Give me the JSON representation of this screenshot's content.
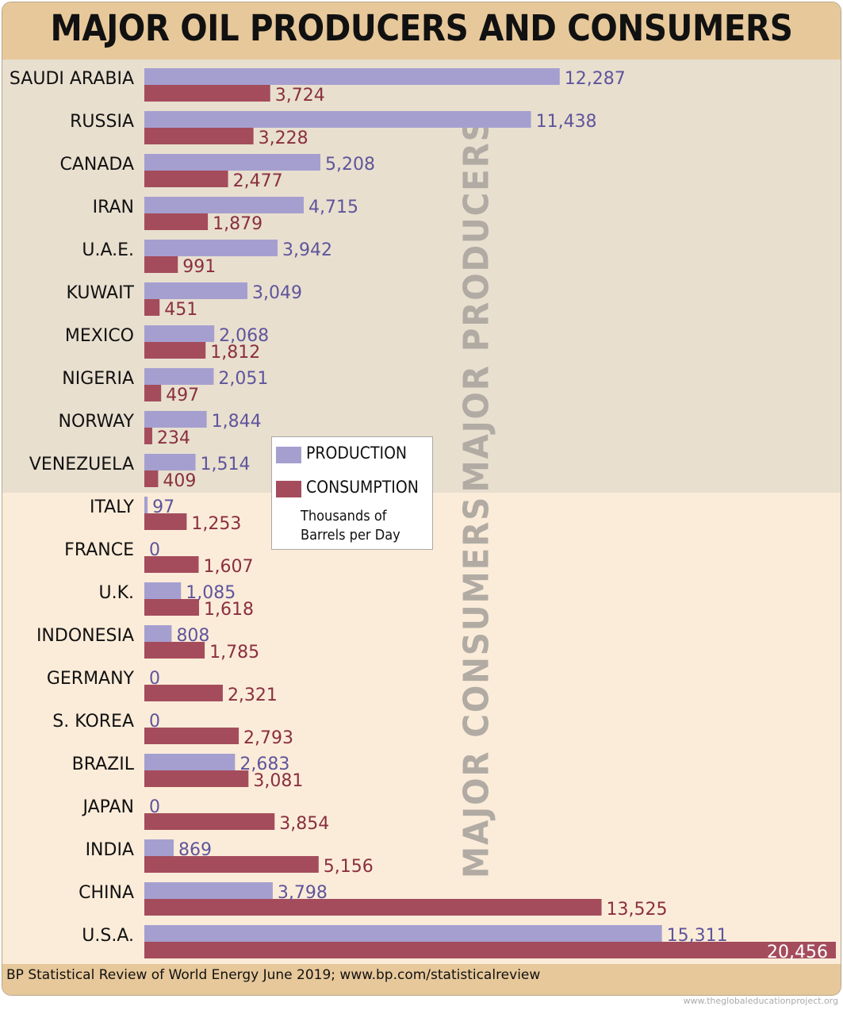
{
  "title": "MAJOR OIL PRODUCERS AND CONSUMERS",
  "section_labels": {
    "producers": "MAJOR PRODUCERS",
    "consumers": "MAJOR CONSUMERS"
  },
  "legend": {
    "production": "PRODUCTION",
    "consumption": "CONSUMPTION",
    "unit_line1": "Thousands of",
    "unit_line2": "Barrels per Day"
  },
  "source": "BP Statistical Review of World Energy June 2019; www.bp.com/statisticalreview",
  "credit": "www.theglobaleducationproject.org",
  "colors": {
    "production": "#a59fd0",
    "consumption": "#a44c5c",
    "production_label": "#5e559c",
    "consumption_label": "#8a2f3f",
    "title_band": "#e7c89a",
    "producers_band": "#e8dfcf",
    "consumers_band": "#fbecd9"
  },
  "chart_data": {
    "type": "bar",
    "orientation": "horizontal",
    "unit": "Thousands of Barrels per Day",
    "categories": [
      "SAUDI ARABIA",
      "RUSSIA",
      "CANADA",
      "IRAN",
      "U.A.E.",
      "KUWAIT",
      "MEXICO",
      "NIGERIA",
      "NORWAY",
      "VENEZUELA",
      "ITALY",
      "FRANCE",
      "U.K.",
      "INDONESIA",
      "GERMANY",
      "S. KOREA",
      "BRAZIL",
      "JAPAN",
      "INDIA",
      "CHINA",
      "U.S.A."
    ],
    "groups": [
      {
        "name": "MAJOR PRODUCERS",
        "categories": [
          "SAUDI ARABIA",
          "RUSSIA",
          "CANADA",
          "IRAN",
          "U.A.E.",
          "KUWAIT",
          "MEXICO",
          "NIGERIA",
          "NORWAY",
          "VENEZUELA"
        ]
      },
      {
        "name": "MAJOR CONSUMERS",
        "categories": [
          "ITALY",
          "FRANCE",
          "U.K.",
          "INDONESIA",
          "GERMANY",
          "S. KOREA",
          "BRAZIL",
          "JAPAN",
          "INDIA",
          "CHINA",
          "U.S.A."
        ]
      }
    ],
    "series": [
      {
        "name": "PRODUCTION",
        "values": [
          12287,
          11438,
          5208,
          4715,
          3942,
          3049,
          2068,
          2051,
          1844,
          1514,
          97,
          0,
          1085,
          808,
          0,
          0,
          2683,
          0,
          869,
          3798,
          15311
        ],
        "labels": [
          "12,287",
          "11,438",
          "5,208",
          "4,715",
          "3,942",
          "3,049",
          "2,068",
          "2,051",
          "1,844",
          "1,514",
          "97",
          "0",
          "1,085",
          "808",
          "0",
          "0",
          "2,683",
          "0",
          "869",
          "3,798",
          "15,311"
        ]
      },
      {
        "name": "CONSUMPTION",
        "values": [
          3724,
          3228,
          2477,
          1879,
          991,
          451,
          1812,
          497,
          234,
          409,
          1253,
          1607,
          1618,
          1785,
          2321,
          2793,
          3081,
          3854,
          5156,
          13525,
          20456
        ],
        "labels": [
          "3,724",
          "3,228",
          "2,477",
          "1,879",
          "991",
          "451",
          "1,812",
          "497",
          "234",
          "409",
          "1,253",
          "1,607",
          "1,618",
          "1,785",
          "2,321",
          "2,793",
          "3,081",
          "3,854",
          "5,156",
          "13,525",
          "20,456"
        ]
      }
    ],
    "xlim": [
      0,
      20456
    ],
    "grid": false,
    "legend_position": "center"
  }
}
